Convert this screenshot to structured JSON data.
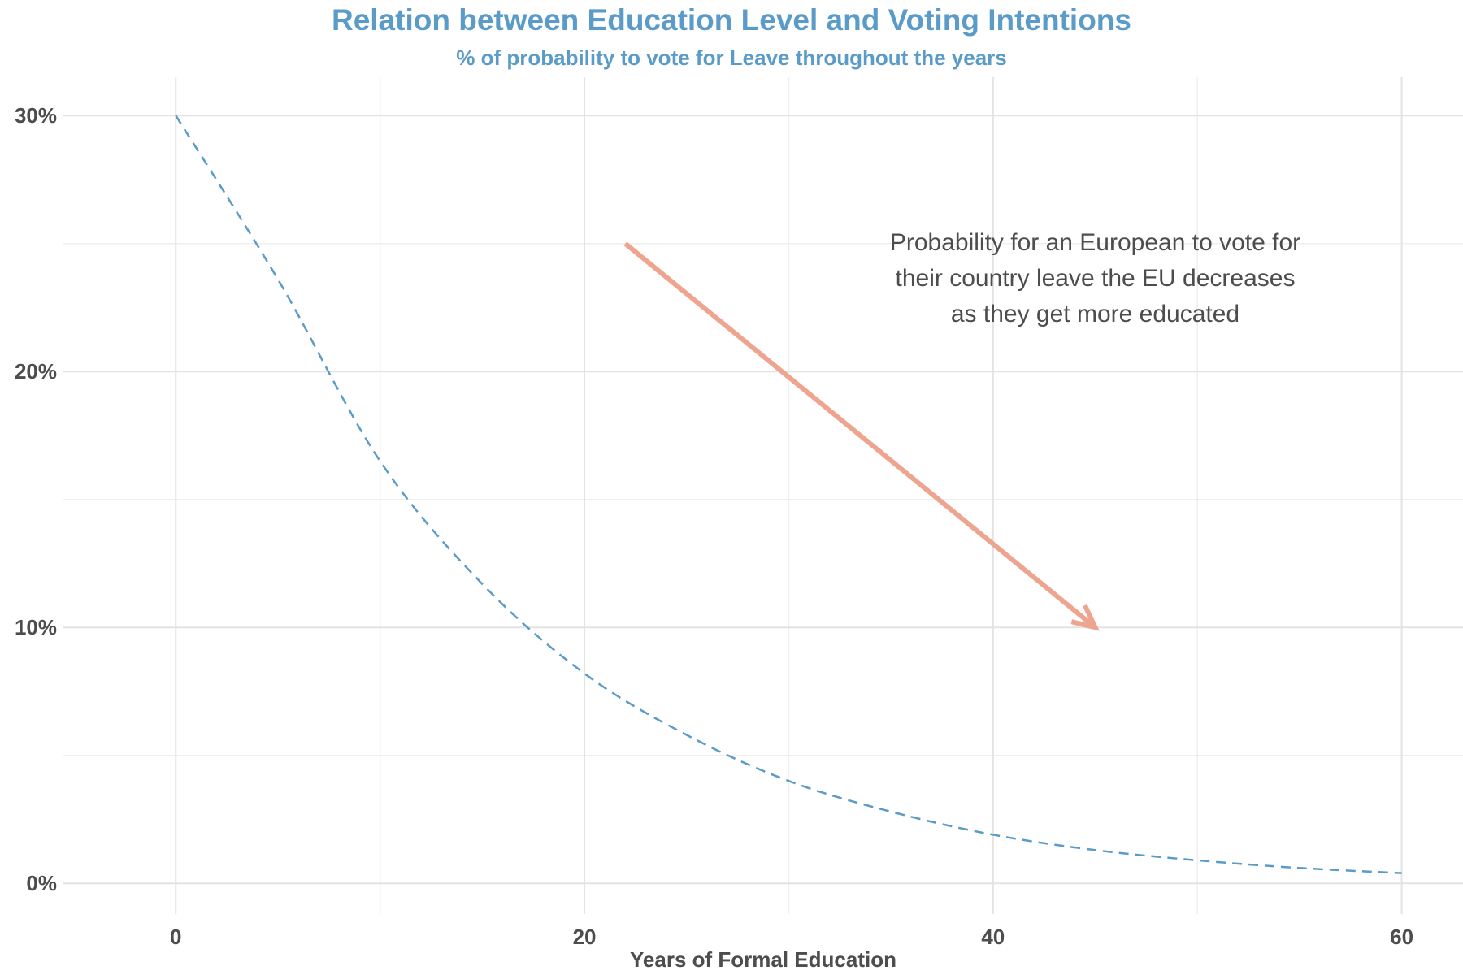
{
  "colors": {
    "title": "#5b9bc8",
    "line": "#5b9bc8",
    "arrow": "#eda590",
    "grid_major": "#e3e3e3",
    "grid_minor": "#efefef",
    "text": "#4d4d4d"
  },
  "chart_data": {
    "type": "line",
    "title": "Relation between Education Level and Voting Intentions",
    "subtitle": "% of probability to vote for Leave throughout the years",
    "xlabel": "Years of Formal Education",
    "ylabel": "",
    "xlim": [
      -5.5,
      63
    ],
    "ylim": [
      -1.2,
      31.5
    ],
    "x_ticks": [
      0,
      20,
      40,
      60
    ],
    "y_ticks": [
      0,
      10,
      20,
      30
    ],
    "y_tick_labels": [
      "0%",
      "10%",
      "20%",
      "30%"
    ],
    "x_tick_labels": [
      "0",
      "20",
      "40",
      "60"
    ],
    "grid": true,
    "legend": "none",
    "series": [
      {
        "line_style": "dashed",
        "x": [
          0,
          5,
          10,
          15,
          20,
          25,
          30,
          35,
          40,
          45,
          50,
          55,
          60
        ],
        "y": [
          30.0,
          23.6,
          16.5,
          11.7,
          8.2,
          5.8,
          4.0,
          2.8,
          1.9,
          1.3,
          0.9,
          0.6,
          0.4
        ]
      }
    ],
    "annotations": [
      {
        "type": "arrow",
        "from": [
          22,
          25
        ],
        "to": [
          45,
          10
        ]
      },
      {
        "type": "text",
        "x": 45,
        "y": 21.5,
        "lines": [
          "Probability for an European to vote for",
          "their country leave the EU decreases",
          "as they get more educated"
        ]
      }
    ]
  }
}
